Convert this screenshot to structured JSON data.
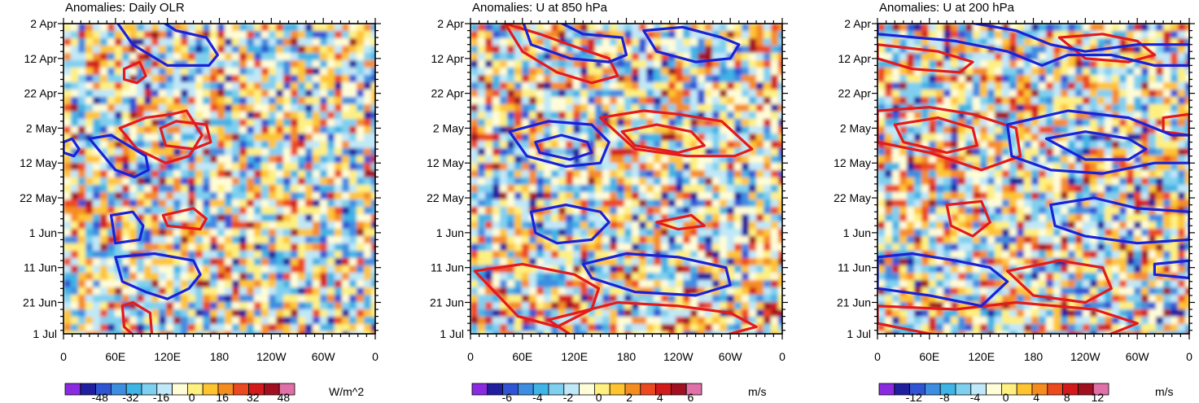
{
  "chart_data": [
    {
      "type": "heatmap",
      "title": "Anomalies: Daily OLR",
      "x_tick_labels": [
        "0",
        "60E",
        "120E",
        "180",
        "120W",
        "60W",
        "0"
      ],
      "x_values": [
        0,
        60,
        120,
        180,
        240,
        300,
        360
      ],
      "y_tick_labels": [
        "2 Apr",
        "12 Apr",
        "22 Apr",
        "2 May",
        "12 May",
        "22 May",
        "1 Jun",
        "11 Jun",
        "21 Jun",
        "1 Jul"
      ],
      "y_days": [
        0,
        10,
        20,
        30,
        40,
        50,
        60,
        70,
        80,
        89
      ],
      "colorbar_labels": [
        "-48",
        "-32",
        "-16",
        "0",
        "16",
        "32",
        "48"
      ],
      "colorbar_unit": "W/m^2",
      "levels": [
        -56,
        -48,
        -40,
        -32,
        -24,
        -16,
        -8,
        0,
        8,
        16,
        24,
        32,
        40,
        48,
        56
      ],
      "contours_positive": [
        {
          "lon": [
            65,
            95,
            125,
            142,
            160,
            145,
            118,
            85,
            65
          ],
          "day": [
            30,
            27,
            26,
            25,
            32,
            38,
            40,
            36,
            30
          ]
        },
        {
          "lon": [
            112,
            130,
            165,
            170,
            150,
            118,
            112
          ],
          "day": [
            30,
            28,
            29,
            34,
            36,
            35,
            30
          ]
        },
        {
          "lon": [
            70,
            88,
            95,
            85,
            70,
            70
          ],
          "day": [
            13,
            11,
            15,
            17,
            16,
            13
          ]
        },
        {
          "lon": [
            115,
            150,
            165,
            158,
            120,
            115
          ],
          "day": [
            55,
            53,
            56,
            59,
            58,
            55
          ]
        },
        {
          "lon": [
            68,
            80,
            100,
            102,
            88,
            70,
            68
          ],
          "day": [
            81,
            80,
            83,
            89,
            91,
            87,
            81
          ]
        }
      ],
      "contours_negative": [
        {
          "lon": [
            60,
            105,
            130,
            165,
            178,
            168,
            120,
            80,
            60
          ],
          "day": [
            -1,
            -2,
            2,
            4,
            9,
            12,
            12,
            6,
            -1
          ]
        },
        {
          "lon": [
            30,
            55,
            75,
            95,
            98,
            82,
            60,
            30
          ],
          "day": [
            33,
            32,
            35,
            38,
            42,
            44,
            42,
            33
          ]
        },
        {
          "lon": [
            0,
            10,
            18,
            12,
            0
          ],
          "day": [
            34,
            33,
            36,
            38,
            37
          ]
        },
        {
          "lon": [
            55,
            80,
            92,
            88,
            60,
            55
          ],
          "day": [
            55,
            54,
            58,
            62,
            63,
            55
          ]
        },
        {
          "lon": [
            60,
            105,
            150,
            158,
            145,
            120,
            95,
            68,
            60
          ],
          "day": [
            67,
            66,
            68,
            72,
            76,
            79,
            77,
            74,
            67
          ]
        }
      ]
    },
    {
      "type": "heatmap",
      "title": "Anomalies: U at 850 hPa",
      "x_tick_labels": [
        "0",
        "60E",
        "120E",
        "180",
        "120W",
        "60W",
        "0"
      ],
      "x_values": [
        0,
        60,
        120,
        180,
        240,
        300,
        360
      ],
      "y_tick_labels": [
        "2 Apr",
        "12 Apr",
        "22 Apr",
        "2 May",
        "12 May",
        "22 May",
        "1 Jun",
        "11 Jun",
        "21 Jun",
        "1 Jul"
      ],
      "y_days": [
        0,
        10,
        20,
        30,
        40,
        50,
        60,
        70,
        80,
        89
      ],
      "colorbar_labels": [
        "-6",
        "-4",
        "-2",
        "0",
        "2",
        "4",
        "6"
      ],
      "colorbar_unit": "m/s",
      "levels": [
        -7,
        -6,
        -5,
        -4,
        -3,
        -2,
        -1,
        0,
        1,
        2,
        3,
        4,
        5,
        6,
        7
      ],
      "contours_positive": [
        {
          "lon": [
            150,
            200,
            240,
            290,
            325,
            305,
            250,
            190,
            150
          ],
          "day": [
            27,
            25,
            26,
            28,
            36,
            38,
            38,
            36,
            27
          ]
        },
        {
          "lon": [
            175,
            215,
            255,
            270,
            240,
            190,
            175
          ],
          "day": [
            31,
            29,
            31,
            35,
            37,
            35,
            31
          ]
        },
        {
          "lon": [
            40,
            80,
            125,
            160,
            170,
            140,
            100,
            60,
            40
          ],
          "day": [
            0,
            3,
            7,
            10,
            15,
            17,
            14,
            8,
            0
          ]
        },
        {
          "lon": [
            5,
            60,
            120,
            148,
            140,
            100,
            55,
            5
          ],
          "day": [
            71,
            69,
            72,
            76,
            82,
            87,
            84,
            71
          ]
        },
        {
          "lon": [
            90,
            170,
            240,
            300,
            330,
            270,
            190,
            120,
            90
          ],
          "day": [
            85,
            80,
            81,
            83,
            87,
            91,
            92,
            90,
            85
          ]
        },
        {
          "lon": [
            215,
            255,
            270,
            240,
            215
          ],
          "day": [
            57,
            55,
            58,
            59,
            57
          ]
        }
      ],
      "contours_negative": [
        {
          "lon": [
            60,
            90,
            130,
            175,
            180,
            160,
            115,
            70,
            60
          ],
          "day": [
            -1,
            -2,
            3,
            4,
            9,
            11,
            10,
            6,
            -1
          ]
        },
        {
          "lon": [
            200,
            245,
            290,
            310,
            300,
            260,
            215,
            200
          ],
          "day": [
            2,
            1,
            4,
            6,
            10,
            11,
            8,
            2
          ]
        },
        {
          "lon": [
            45,
            90,
            140,
            160,
            150,
            110,
            65,
            45
          ],
          "day": [
            31,
            28,
            29,
            34,
            40,
            41,
            38,
            31
          ]
        },
        {
          "lon": [
            75,
            105,
            135,
            140,
            115,
            80,
            75
          ],
          "day": [
            34,
            32,
            34,
            37,
            39,
            37,
            34
          ]
        },
        {
          "lon": [
            70,
            110,
            150,
            160,
            140,
            100,
            75,
            70
          ],
          "day": [
            54,
            52,
            54,
            57,
            62,
            63,
            60,
            54
          ]
        },
        {
          "lon": [
            130,
            180,
            240,
            295,
            300,
            260,
            190,
            140,
            130
          ],
          "day": [
            69,
            66,
            67,
            70,
            75,
            78,
            77,
            73,
            69
          ]
        }
      ]
    },
    {
      "type": "heatmap",
      "title": "Anomalies: U at 200 hPa",
      "x_tick_labels": [
        "0",
        "60E",
        "120E",
        "180",
        "120W",
        "60W",
        "0"
      ],
      "x_values": [
        0,
        60,
        120,
        180,
        240,
        300,
        360
      ],
      "y_tick_labels": [
        "2 Apr",
        "12 Apr",
        "22 Apr",
        "2 May",
        "12 May",
        "22 May",
        "1 Jun",
        "11 Jun",
        "21 Jun",
        "1 Jul"
      ],
      "y_days": [
        0,
        10,
        20,
        30,
        40,
        50,
        60,
        70,
        80,
        89
      ],
      "colorbar_labels": [
        "-12",
        "-8",
        "-4",
        "0",
        "4",
        "8",
        "12"
      ],
      "colorbar_unit": "m/s",
      "levels": [
        -14,
        -12,
        -10,
        -8,
        -6,
        -4,
        -2,
        0,
        2,
        4,
        6,
        8,
        10,
        12,
        14
      ],
      "contours_positive": [
        {
          "lon": [
            0,
            60,
            110,
            160,
            165,
            120,
            60,
            0
          ],
          "day": [
            25,
            24,
            26,
            30,
            38,
            42,
            37,
            34
          ]
        },
        {
          "lon": [
            20,
            70,
            110,
            115,
            80,
            30,
            20
          ],
          "day": [
            29,
            27,
            30,
            35,
            37,
            34,
            29
          ]
        },
        {
          "lon": [
            210,
            260,
            300,
            320,
            290,
            240,
            210
          ],
          "day": [
            4,
            3,
            5,
            9,
            11,
            10,
            4
          ]
        },
        {
          "lon": [
            0,
            70,
            110,
            95,
            40,
            0
          ],
          "day": [
            6,
            8,
            11,
            14,
            13,
            10
          ]
        },
        {
          "lon": [
            330,
            360,
            360,
            330
          ],
          "day": [
            27,
            26,
            32,
            31
          ]
        },
        {
          "lon": [
            150,
            210,
            260,
            270,
            240,
            180,
            150
          ],
          "day": [
            71,
            68,
            70,
            76,
            80,
            78,
            71
          ]
        },
        {
          "lon": [
            0,
            90,
            160,
            250,
            300,
            260,
            170,
            60,
            0
          ],
          "day": [
            81,
            82,
            80,
            82,
            86,
            90,
            91,
            89,
            86
          ]
        },
        {
          "lon": [
            80,
            120,
            130,
            110,
            85,
            80
          ],
          "day": [
            52,
            51,
            57,
            61,
            58,
            52
          ]
        }
      ],
      "contours_negative": [
        {
          "lon": [
            0,
            90,
            160,
            200,
            240,
            300,
            360,
            360,
            320,
            270,
            220,
            190,
            150,
            90,
            0
          ],
          "day": [
            -1,
            -1,
            2,
            6,
            8,
            6,
            6,
            12,
            12,
            9,
            9,
            12,
            8,
            5,
            3
          ]
        },
        {
          "lon": [
            150,
            220,
            290,
            340,
            360,
            360,
            320,
            260,
            200,
            155,
            150
          ],
          "day": [
            29,
            25,
            27,
            32,
            32,
            40,
            40,
            43,
            42,
            38,
            29
          ]
        },
        {
          "lon": [
            195,
            240,
            290,
            310,
            290,
            240,
            195
          ],
          "day": [
            33,
            31,
            33,
            36,
            39,
            39,
            33
          ]
        },
        {
          "lon": [
            0,
            40,
            90,
            130,
            150,
            120,
            60,
            0
          ],
          "day": [
            67,
            66,
            68,
            70,
            74,
            81,
            78,
            76
          ]
        },
        {
          "lon": [
            200,
            250,
            300,
            360,
            360,
            300,
            240,
            205,
            200
          ],
          "day": [
            52,
            50,
            53,
            54,
            62,
            63,
            61,
            58,
            52
          ]
        },
        {
          "lon": [
            320,
            360,
            360,
            320
          ],
          "day": [
            69,
            68,
            73,
            72
          ]
        }
      ]
    }
  ]
}
